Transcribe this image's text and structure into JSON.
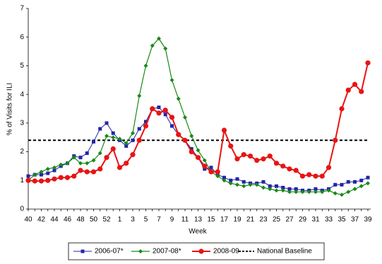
{
  "chart_data": {
    "type": "line",
    "y_label": "% of Visits for ILI",
    "x_label": "Week",
    "categories": [
      "40",
      null,
      "42",
      null,
      "44",
      null,
      "46",
      null,
      "48",
      null,
      "50",
      null,
      "52",
      null,
      "1",
      null,
      "3",
      null,
      "5",
      null,
      "7",
      null,
      "9",
      null,
      "11",
      null,
      "13",
      null,
      "15",
      null,
      "17",
      null,
      "19",
      null,
      "21",
      null,
      "23",
      null,
      "25",
      null,
      "27",
      null,
      "29",
      null,
      "31",
      null,
      "33",
      null,
      "35",
      null,
      "37",
      null,
      "39"
    ],
    "series": [
      {
        "name": "2006-07*",
        "color": "#2424a8",
        "marker": "square",
        "values": [
          1.15,
          1.2,
          1.2,
          1.25,
          1.35,
          1.5,
          1.6,
          1.85,
          1.8,
          1.95,
          2.35,
          2.8,
          3.0,
          2.65,
          2.4,
          2.2,
          2.4,
          2.8,
          3.05,
          3.5,
          3.55,
          3.3,
          2.9,
          2.6,
          2.4,
          2.1,
          1.8,
          1.4,
          1.45,
          1.2,
          1.1,
          1.0,
          1.05,
          0.95,
          0.9,
          0.9,
          0.95,
          0.8,
          0.8,
          0.75,
          0.7,
          0.7,
          0.65,
          0.65,
          0.7,
          0.65,
          0.7,
          0.85,
          0.85,
          0.95,
          0.95,
          1.0,
          1.1
        ]
      },
      {
        "name": "2007-08*",
        "color": "#168a16",
        "marker": "diamond",
        "values": [
          1.0,
          1.2,
          1.3,
          1.4,
          1.45,
          1.55,
          1.6,
          1.8,
          1.6,
          1.6,
          1.7,
          1.95,
          2.55,
          2.5,
          2.45,
          2.3,
          2.65,
          3.95,
          5.0,
          5.7,
          5.95,
          5.6,
          4.5,
          3.85,
          3.2,
          2.55,
          2.05,
          1.7,
          1.3,
          1.15,
          1.0,
          0.9,
          0.85,
          0.8,
          0.85,
          0.85,
          0.75,
          0.7,
          0.65,
          0.65,
          0.6,
          0.6,
          0.6,
          0.6,
          0.6,
          0.6,
          0.65,
          0.55,
          0.5,
          0.6,
          0.7,
          0.8,
          0.9
        ]
      },
      {
        "name": "2008-09",
        "color": "#e81414",
        "marker": "circle",
        "values": [
          1.0,
          0.98,
          0.98,
          1.0,
          1.05,
          1.1,
          1.1,
          1.15,
          1.35,
          1.3,
          1.3,
          1.4,
          1.8,
          2.1,
          1.45,
          1.6,
          1.9,
          2.4,
          2.9,
          3.5,
          3.35,
          3.45,
          3.2,
          2.6,
          2.4,
          2.0,
          1.8,
          1.5,
          1.3,
          1.3,
          2.75,
          2.2,
          1.75,
          1.9,
          1.85,
          1.7,
          1.75,
          1.85,
          1.6,
          1.5,
          1.4,
          1.35,
          1.15,
          1.2,
          1.15,
          1.15,
          1.45,
          2.4,
          3.5,
          4.15,
          4.35,
          4.1,
          5.1
        ]
      }
    ],
    "baseline": {
      "name": "National Baseline",
      "value": 2.4,
      "color": "#000000"
    },
    "ylim": [
      0,
      7
    ],
    "yticks": [
      0,
      1,
      2,
      3,
      4,
      5,
      6,
      7
    ],
    "grid": false
  }
}
